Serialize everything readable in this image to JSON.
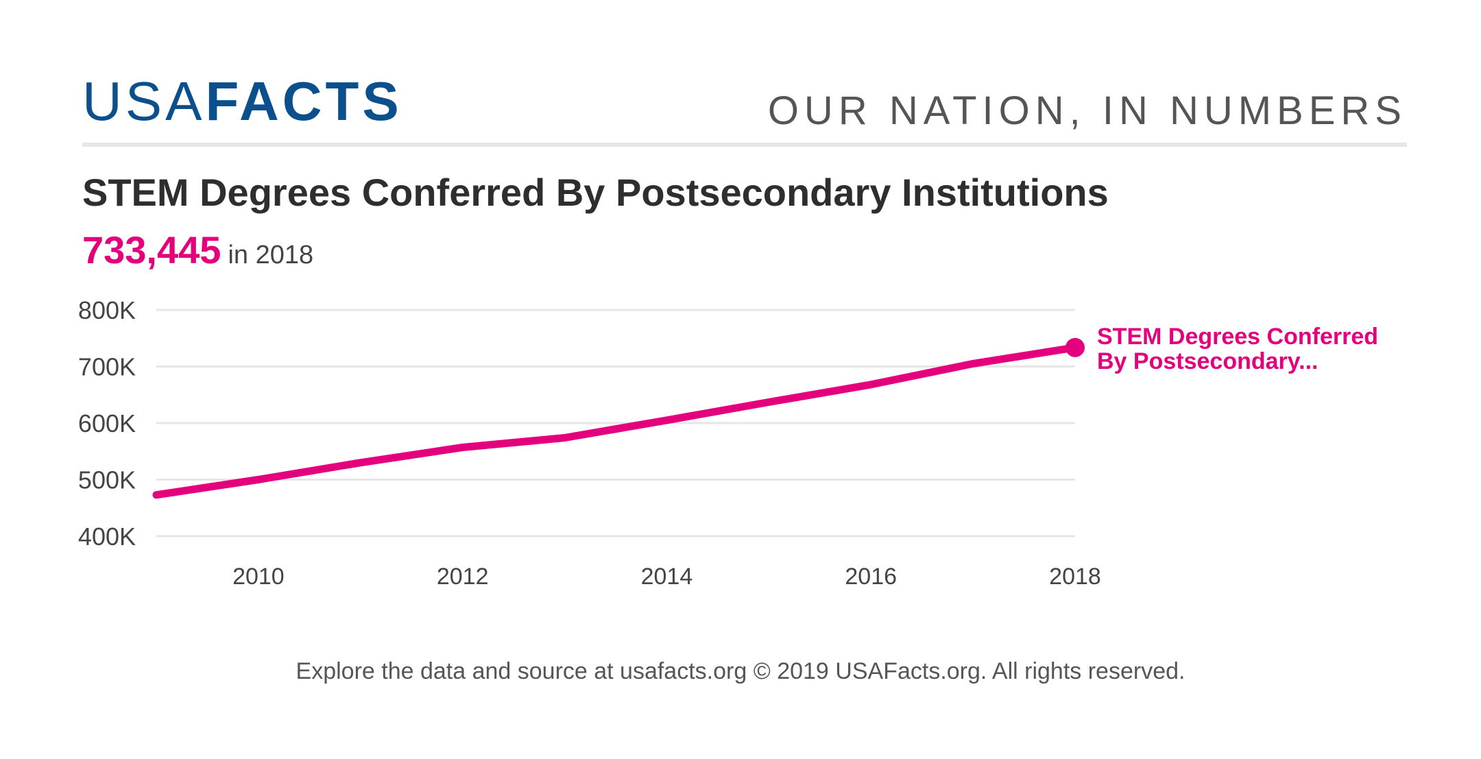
{
  "header": {
    "logo_usa": "USA",
    "logo_facts": "FACTS",
    "tagline": "OUR NATION, IN NUMBERS"
  },
  "headline": {
    "value": "733,445",
    "suffix": "in 2018"
  },
  "footer": {
    "text": "Explore the data and source at usafacts.org © 2019 USAFacts.org. All rights reserved."
  },
  "colors": {
    "brand_blue": "#0b4f8c",
    "series": "#e4007c",
    "gridline": "#e6e6e6",
    "text_dark": "#2e2e2e"
  },
  "chart_data": {
    "type": "line",
    "title": "STEM Degrees Conferred By Postsecondary Institutions",
    "xlabel": "",
    "ylabel": "",
    "x": [
      2009,
      2010,
      2011,
      2012,
      2013,
      2014,
      2015,
      2016,
      2017,
      2018
    ],
    "series": [
      {
        "name": "STEM Degrees Conferred By Postsecondary...",
        "values": [
          473000,
          500000,
          530000,
          557000,
          574000,
          605000,
          637000,
          668000,
          705000,
          733445
        ]
      }
    ],
    "xlim": [
      2009,
      2018
    ],
    "ylim": [
      400000,
      800000
    ],
    "x_ticks": [
      2010,
      2012,
      2014,
      2016,
      2018
    ],
    "y_ticks": [
      400000,
      500000,
      600000,
      700000,
      800000
    ],
    "x_tick_labels": [
      "2010",
      "2012",
      "2014",
      "2016",
      "2018"
    ],
    "y_tick_labels": [
      "400K",
      "500K",
      "600K",
      "700K",
      "800K"
    ],
    "grid": true,
    "legend": "end-of-line label",
    "series_label_lines": [
      "STEM Degrees Conferred",
      "By Postsecondary..."
    ]
  }
}
